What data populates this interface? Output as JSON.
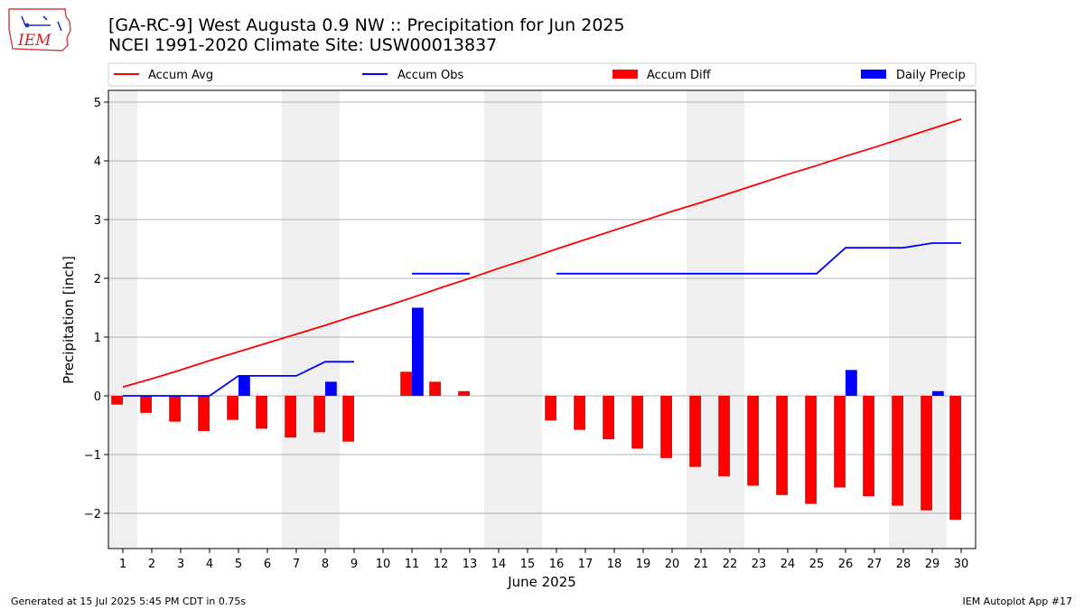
{
  "logo": {
    "text": "IEM"
  },
  "header": {
    "title": "[GA-RC-9] West Augusta 0.9 NW :: Precipitation for Jun 2025",
    "subtitle": "NCEI 1991-2020 Climate Site: USW00013837"
  },
  "footer": {
    "generated": "Generated at 15 Jul 2025 5:45 PM CDT in 0.75s",
    "app": "IEM Autoplot App #17"
  },
  "chart_data": {
    "type": "bar",
    "xlabel": "June 2025",
    "ylabel": "Precipitation [inch]",
    "xlim": [
      0.5,
      30.5
    ],
    "ylim": [
      -2.6,
      5.2
    ],
    "yticks": [
      -2,
      -1,
      0,
      1,
      2,
      3,
      4,
      5
    ],
    "ytick_labels": [
      "−2",
      "−1",
      "0",
      "1",
      "2",
      "3",
      "4",
      "5"
    ],
    "x": [
      1,
      2,
      3,
      4,
      5,
      6,
      7,
      8,
      9,
      10,
      11,
      12,
      13,
      14,
      15,
      16,
      17,
      18,
      19,
      20,
      21,
      22,
      23,
      24,
      25,
      26,
      27,
      28,
      29,
      30
    ],
    "weekend_spans": [
      [
        0.5,
        1.5
      ],
      [
        6.5,
        8.5
      ],
      [
        13.5,
        15.5
      ],
      [
        20.5,
        22.5
      ],
      [
        27.5,
        29.5
      ]
    ],
    "grid": "horizontal",
    "legend_placement": "top",
    "series": [
      {
        "name": "Accum Avg",
        "kind": "line",
        "color": "#ff0000",
        "values": [
          0.15,
          0.29,
          0.44,
          0.6,
          0.75,
          0.9,
          1.05,
          1.2,
          1.36,
          1.51,
          1.67,
          1.84,
          2.0,
          2.17,
          2.33,
          2.5,
          2.66,
          2.82,
          2.98,
          3.14,
          3.29,
          3.45,
          3.61,
          3.77,
          3.92,
          4.08,
          4.23,
          4.39,
          4.55,
          4.71
        ]
      },
      {
        "name": "Accum Obs",
        "kind": "line",
        "color": "#0000ff",
        "values": [
          0.0,
          0.0,
          0.0,
          0.0,
          0.34,
          0.34,
          0.34,
          0.58,
          0.58,
          null,
          2.08,
          2.08,
          2.08,
          null,
          null,
          2.08,
          2.08,
          2.08,
          2.08,
          2.08,
          2.08,
          2.08,
          2.08,
          2.08,
          2.08,
          2.52,
          2.52,
          2.52,
          2.6,
          2.6
        ]
      },
      {
        "name": "Accum Diff",
        "kind": "bar",
        "color": "#ff0000",
        "offset": -0.2,
        "values": [
          -0.15,
          -0.29,
          -0.44,
          -0.6,
          -0.41,
          -0.56,
          -0.71,
          -0.62,
          -0.78,
          null,
          0.41,
          0.24,
          0.08,
          null,
          null,
          -0.42,
          -0.58,
          -0.74,
          -0.9,
          -1.06,
          -1.21,
          -1.37,
          -1.53,
          -1.69,
          -1.84,
          -1.56,
          -1.71,
          -1.87,
          -1.95,
          -2.11
        ]
      },
      {
        "name": "Daily Precip",
        "kind": "bar",
        "color": "#0000ff",
        "offset": 0.2,
        "values": [
          0,
          0,
          0,
          0,
          0.34,
          0,
          0,
          0.24,
          0,
          null,
          1.5,
          0,
          0,
          null,
          null,
          0,
          0,
          0,
          0,
          0,
          0,
          0,
          0,
          0,
          0,
          0.44,
          0,
          0,
          0.08,
          0
        ]
      }
    ]
  }
}
